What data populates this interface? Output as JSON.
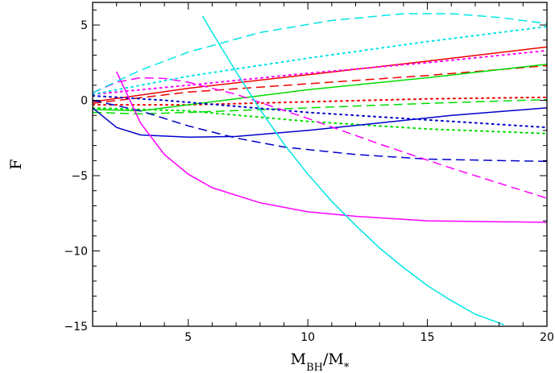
{
  "chart_data": {
    "type": "line",
    "title": "",
    "xlabel": "M_BH/M_*",
    "xlabel_main": "M",
    "xlabel_sub": "BH",
    "xlabel_slash": "/M",
    "xlabel_sub2": "*",
    "ylabel": "F",
    "xlim": [
      1,
      20
    ],
    "ylim": [
      -15,
      6.5
    ],
    "x_ticks": [
      5,
      10,
      15,
      20
    ],
    "y_ticks": [
      -15,
      -10,
      -5,
      0,
      5
    ],
    "x_tick_labels": [
      "5",
      "10",
      "15",
      "20"
    ],
    "y_tick_labels": [
      "−15",
      "−10",
      "−5",
      "0",
      "5"
    ],
    "grid": false,
    "legend": "none",
    "series": [
      {
        "color": "#ee0000",
        "dash": "solid",
        "x": [
          1,
          5,
          10,
          15,
          20
        ],
        "y": [
          -0.1,
          0.8,
          1.7,
          2.6,
          3.55
        ]
      },
      {
        "color": "#ee0000",
        "dash": "dashed",
        "x": [
          1,
          5,
          10,
          15,
          20
        ],
        "y": [
          -0.2,
          0.55,
          1.1,
          1.65,
          2.3
        ]
      },
      {
        "color": "#ee0000",
        "dash": "dotted",
        "x": [
          1,
          5,
          10,
          15,
          20
        ],
        "y": [
          -0.3,
          -0.3,
          -0.1,
          0.1,
          0.2
        ]
      },
      {
        "color": "#ff00ff",
        "dash": "dotted",
        "x": [
          1,
          5,
          10,
          15,
          20
        ],
        "y": [
          0.4,
          1.0,
          1.8,
          2.5,
          3.3
        ]
      },
      {
        "color": "#00dd00",
        "dash": "solid",
        "x": [
          1,
          3,
          5,
          10,
          15,
          20
        ],
        "y": [
          -0.6,
          -0.7,
          -0.3,
          0.7,
          1.5,
          2.4
        ]
      },
      {
        "color": "#00dd00",
        "dash": "dashed",
        "x": [
          1,
          3,
          5,
          10,
          15,
          20
        ],
        "y": [
          -0.8,
          -0.9,
          -0.8,
          -0.5,
          -0.2,
          0.05
        ]
      },
      {
        "color": "#00dd00",
        "dash": "dotted",
        "x": [
          1,
          5,
          10,
          15,
          20
        ],
        "y": [
          -0.5,
          -0.7,
          -1.4,
          -1.9,
          -2.2
        ]
      },
      {
        "color": "#0000cc",
        "dash": "solid",
        "x": [
          1,
          2,
          3,
          5,
          7,
          10,
          13,
          16,
          20
        ],
        "y": [
          -0.5,
          -1.8,
          -2.3,
          -2.45,
          -2.4,
          -2.0,
          -1.5,
          -1.0,
          -0.5
        ]
      },
      {
        "color": "#0000cc",
        "dash": "dashed",
        "x": [
          1,
          3,
          5,
          7,
          9,
          12,
          15,
          18,
          20
        ],
        "y": [
          0,
          -0.7,
          -1.7,
          -2.5,
          -3.1,
          -3.6,
          -3.9,
          -4.0,
          -4.05
        ]
      },
      {
        "color": "#0000cc",
        "dash": "dotted",
        "x": [
          1,
          4,
          7,
          10,
          15,
          20
        ],
        "y": [
          0.3,
          0.0,
          -0.4,
          -0.8,
          -1.3,
          -1.8
        ]
      },
      {
        "color": "#ff00ff",
        "dash": "solid",
        "x": [
          2,
          3,
          4,
          5,
          6,
          8,
          10,
          12,
          15,
          20
        ],
        "y": [
          1.9,
          -1.5,
          -3.6,
          -4.9,
          -5.8,
          -6.8,
          -7.4,
          -7.7,
          -8.0,
          -8.1
        ]
      },
      {
        "color": "#ff00ff",
        "dash": "dashed",
        "x": [
          1,
          2,
          3,
          4,
          5,
          7,
          10,
          13,
          16,
          20
        ],
        "y": [
          0.5,
          1.2,
          1.5,
          1.45,
          1.2,
          0.4,
          -1.2,
          -2.9,
          -4.5,
          -6.5
        ]
      },
      {
        "color": "#00e5e5",
        "dash": "solid",
        "x": [
          5.6,
          6,
          7,
          8,
          9,
          10,
          11,
          12,
          13,
          14,
          15,
          16,
          17,
          18.2
        ],
        "y": [
          5.6,
          4.5,
          1.9,
          -0.6,
          -2.9,
          -4.9,
          -6.7,
          -8.3,
          -9.8,
          -11.1,
          -12.3,
          -13.3,
          -14.2,
          -14.9
        ]
      },
      {
        "color": "#00e5e5",
        "dash": "dashed",
        "x": [
          1,
          3,
          5,
          8,
          11,
          14,
          16,
          18,
          20
        ],
        "y": [
          0.5,
          2.0,
          3.2,
          4.5,
          5.3,
          5.75,
          5.75,
          5.5,
          5.1
        ]
      },
      {
        "color": "#00e5e5",
        "dash": "dotted",
        "x": [
          1,
          5,
          10,
          15,
          20
        ],
        "y": [
          0.4,
          1.6,
          2.8,
          3.9,
          4.9
        ]
      }
    ]
  }
}
